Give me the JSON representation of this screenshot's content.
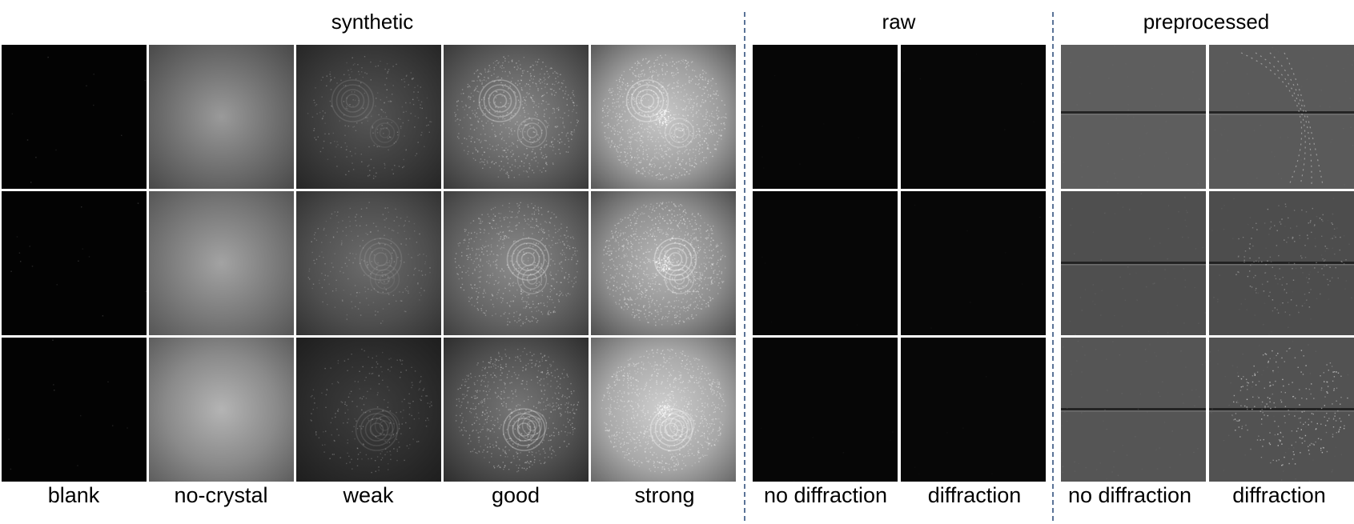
{
  "groups": {
    "synthetic": "synthetic",
    "raw": "raw",
    "preprocessed": "preprocessed"
  },
  "labels": {
    "synthetic": [
      "blank",
      "no-crystal",
      "weak",
      "good",
      "strong"
    ],
    "raw": [
      "no diffraction",
      "diffraction"
    ],
    "preprocessed": [
      "no diffraction",
      "diffraction"
    ]
  }
}
